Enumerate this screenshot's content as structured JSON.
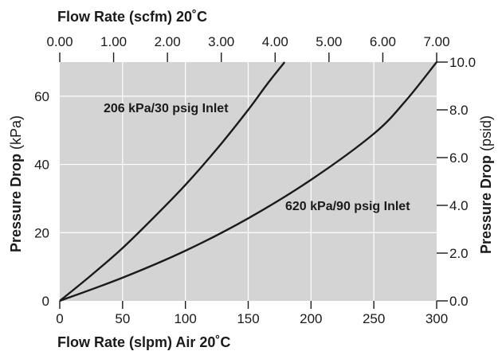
{
  "chart_data": {
    "type": "line",
    "top_axis": {
      "title": "Flow Rate (scfm) 20˚C",
      "range": [
        0,
        7
      ],
      "ticks": [
        "0.00",
        "1.00",
        "2.00",
        "3.00",
        "4.00",
        "5.00",
        "6.00",
        "7.00"
      ]
    },
    "bottom_axis": {
      "title": "Flow Rate (slpm) Air 20˚C",
      "range": [
        0,
        300
      ],
      "ticks": [
        "0",
        "50",
        "100",
        "150",
        "200",
        "250",
        "300"
      ]
    },
    "left_axis": {
      "title_bold": "Pressure Drop",
      "title_unit": "(kPa)",
      "range": [
        0,
        70
      ],
      "ticks": [
        "0",
        "20",
        "40",
        "60"
      ]
    },
    "right_axis": {
      "title_bold": "Pressure Drop",
      "title_unit": "(psid)",
      "range": [
        0,
        10
      ],
      "ticks": [
        "0.0",
        "2.0",
        "4.0",
        "6.0",
        "8.0",
        "10.0"
      ]
    },
    "grid": true,
    "series": [
      {
        "name": "206 kPa/30 psig Inlet",
        "x_slpm": [
          0,
          25,
          50,
          75,
          100,
          125,
          150,
          165,
          179
        ],
        "y_kpa": [
          0,
          7.5,
          15.5,
          24.5,
          34,
          44.5,
          56,
          63.5,
          70
        ]
      },
      {
        "name": "620 kPa/90 psig Inlet",
        "x_slpm": [
          0,
          50,
          100,
          150,
          200,
          250,
          275,
          300
        ],
        "y_kpa": [
          0,
          6.8,
          14.7,
          24.2,
          35.5,
          49,
          58.5,
          70
        ]
      }
    ]
  }
}
